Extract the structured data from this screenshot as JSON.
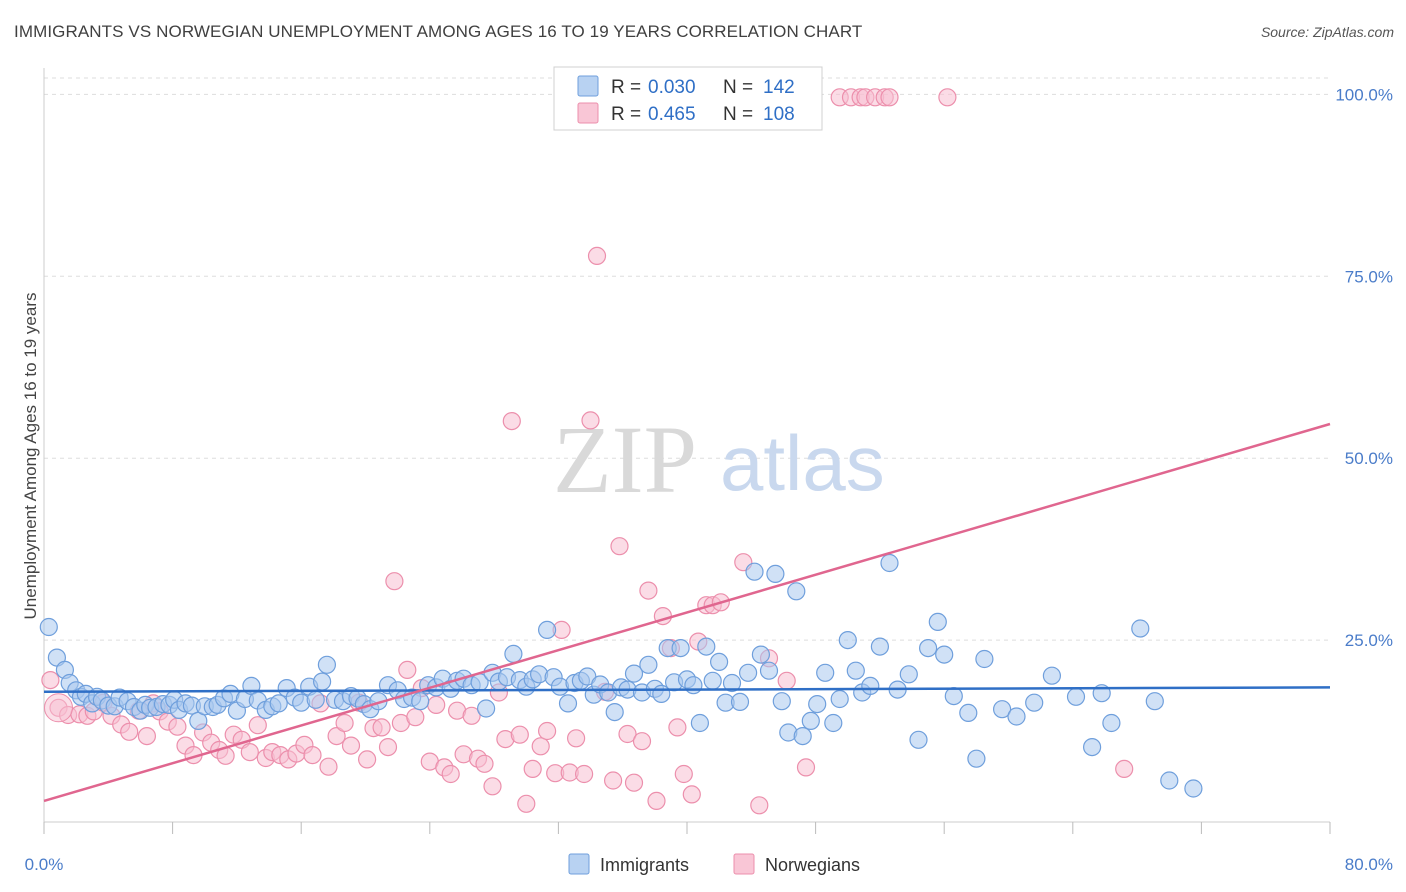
{
  "header": {
    "title": "IMMIGRANTS VS NORWEGIAN UNEMPLOYMENT AMONG AGES 16 TO 19 YEARS CORRELATION CHART",
    "source": "Source: ZipAtlas.com"
  },
  "watermark": {
    "zip": "ZIP",
    "atlas": "atlas"
  },
  "legend": {
    "rows": [
      {
        "r_label": "R =",
        "r_value": "0.030",
        "n_label": "N =",
        "n_value": "142",
        "color": "#8db4e8"
      },
      {
        "r_label": "R =",
        "r_value": "0.465",
        "n_label": "N =",
        "n_value": "108",
        "color": "#f4a8c0"
      }
    ]
  },
  "bottom_legend": {
    "immigrants": "Immigrants",
    "norwegians": "Norwegians"
  },
  "colors": {
    "immigrants_fill": "#a9c8ef",
    "immigrants_stroke": "#6f9fdc",
    "immigrants_line": "#2f6fc6",
    "norwegians_fill": "#f8bfd1",
    "norwegians_stroke": "#ec8fac",
    "norwegians_line": "#e0668f",
    "tick_label": "#4a7cc9",
    "grid": "#dddddd"
  },
  "chart_data": {
    "type": "scatter",
    "title": "IMMIGRANTS VS NORWEGIAN UNEMPLOYMENT AMONG AGES 16 TO 19 YEARS CORRELATION CHART",
    "xlabel": "",
    "ylabel": "Unemployment Among Ages 16 to 19 years",
    "xlim": [
      0,
      80
    ],
    "ylim": [
      0,
      105
    ],
    "x_tick_labels": [
      "0.0%",
      "80.0%"
    ],
    "y_ticks": [
      25,
      50,
      75,
      100
    ],
    "y_tick_labels": [
      "25.0%",
      "50.0%",
      "75.0%",
      "100.0%"
    ],
    "grid": true,
    "legend_position": "top-center",
    "series": [
      {
        "name": "Immigrants",
        "r": 0.03,
        "n": 142,
        "trend": {
          "x": [
            0,
            80
          ],
          "y": [
            17.9,
            18.5
          ]
        },
        "points": [
          [
            0.3,
            26.8
          ],
          [
            0.8,
            22.6
          ],
          [
            1.3,
            20.9
          ],
          [
            1.6,
            19.1
          ],
          [
            2,
            18.1
          ],
          [
            2.3,
            17.2
          ],
          [
            2.6,
            17.6
          ],
          [
            3,
            16.3
          ],
          [
            3.3,
            17.2
          ],
          [
            3.6,
            16.7
          ],
          [
            4,
            16
          ],
          [
            4.4,
            15.9
          ],
          [
            4.7,
            17.1
          ],
          [
            5.2,
            16.6
          ],
          [
            5.6,
            15.8
          ],
          [
            6,
            15.3
          ],
          [
            6.3,
            16.1
          ],
          [
            6.6,
            15.7
          ],
          [
            7,
            15.8
          ],
          [
            7.4,
            16.2
          ],
          [
            7.8,
            16.1
          ],
          [
            8.1,
            16.8
          ],
          [
            8.4,
            15.4
          ],
          [
            8.8,
            16.3
          ],
          [
            9.2,
            16
          ],
          [
            9.6,
            13.9
          ],
          [
            10,
            15.9
          ],
          [
            10.5,
            15.8
          ],
          [
            10.8,
            16.1
          ],
          [
            11.2,
            17
          ],
          [
            11.6,
            17.6
          ],
          [
            12,
            15.3
          ],
          [
            12.5,
            16.9
          ],
          [
            12.9,
            18.7
          ],
          [
            13.3,
            16.7
          ],
          [
            13.8,
            15.4
          ],
          [
            14.2,
            15.9
          ],
          [
            14.6,
            16.3
          ],
          [
            15.1,
            18.4
          ],
          [
            15.6,
            17.1
          ],
          [
            16,
            16.4
          ],
          [
            16.5,
            18.6
          ],
          [
            16.9,
            16.8
          ],
          [
            17.3,
            19.3
          ],
          [
            17.6,
            21.6
          ],
          [
            18.1,
            16.8
          ],
          [
            18.6,
            16.6
          ],
          [
            19.1,
            17.3
          ],
          [
            19.5,
            17
          ],
          [
            19.9,
            16.2
          ],
          [
            20.3,
            15.5
          ],
          [
            20.8,
            16.6
          ],
          [
            21.4,
            18.8
          ],
          [
            22,
            18.1
          ],
          [
            22.4,
            16.9
          ],
          [
            22.9,
            17.1
          ],
          [
            23.4,
            16.6
          ],
          [
            23.9,
            18.8
          ],
          [
            24.4,
            18.5
          ],
          [
            24.8,
            19.7
          ],
          [
            25.3,
            18.3
          ],
          [
            25.7,
            19.4
          ],
          [
            26.1,
            19.7
          ],
          [
            26.6,
            18.8
          ],
          [
            27.1,
            19.2
          ],
          [
            27.5,
            15.6
          ],
          [
            27.9,
            20.5
          ],
          [
            28.3,
            19.3
          ],
          [
            28.8,
            19.9
          ],
          [
            29.2,
            23.1
          ],
          [
            29.6,
            19.5
          ],
          [
            30,
            18.6
          ],
          [
            30.4,
            19.6
          ],
          [
            30.8,
            20.3
          ],
          [
            31.3,
            26.4
          ],
          [
            31.7,
            19.9
          ],
          [
            32.1,
            18.6
          ],
          [
            32.6,
            16.3
          ],
          [
            33,
            19.1
          ],
          [
            33.4,
            19.4
          ],
          [
            33.8,
            20
          ],
          [
            34.2,
            17.5
          ],
          [
            34.6,
            18.9
          ],
          [
            35.1,
            17.8
          ],
          [
            35.5,
            15.1
          ],
          [
            35.9,
            18.5
          ],
          [
            36.3,
            18.2
          ],
          [
            36.7,
            20.4
          ],
          [
            37.2,
            17.8
          ],
          [
            37.6,
            21.6
          ],
          [
            38,
            18.3
          ],
          [
            38.4,
            17.6
          ],
          [
            38.8,
            23.9
          ],
          [
            39.2,
            19.2
          ],
          [
            39.6,
            23.9
          ],
          [
            40,
            19.6
          ],
          [
            40.4,
            18.8
          ],
          [
            40.8,
            13.6
          ],
          [
            41.2,
            24.1
          ],
          [
            41.6,
            19.4
          ],
          [
            42,
            22
          ],
          [
            42.4,
            16.4
          ],
          [
            42.8,
            19.1
          ],
          [
            43.3,
            16.5
          ],
          [
            43.8,
            20.5
          ],
          [
            44.2,
            34.4
          ],
          [
            44.6,
            23
          ],
          [
            45.1,
            20.8
          ],
          [
            45.5,
            34.1
          ],
          [
            45.9,
            16.6
          ],
          [
            46.3,
            12.3
          ],
          [
            46.8,
            31.7
          ],
          [
            47.2,
            11.8
          ],
          [
            47.7,
            13.9
          ],
          [
            48.1,
            16.2
          ],
          [
            48.6,
            20.5
          ],
          [
            49.1,
            13.6
          ],
          [
            49.5,
            16.9
          ],
          [
            50,
            25
          ],
          [
            50.5,
            20.8
          ],
          [
            50.9,
            17.8
          ],
          [
            51.4,
            18.7
          ],
          [
            52,
            24.1
          ],
          [
            52.6,
            35.6
          ],
          [
            53.1,
            18.2
          ],
          [
            53.8,
            20.3
          ],
          [
            54.4,
            11.3
          ],
          [
            55,
            23.9
          ],
          [
            55.6,
            27.5
          ],
          [
            56,
            23
          ],
          [
            56.6,
            17.3
          ],
          [
            57.5,
            15
          ],
          [
            58,
            8.7
          ],
          [
            58.5,
            22.4
          ],
          [
            59.6,
            15.5
          ],
          [
            60.5,
            14.5
          ],
          [
            61.6,
            16.4
          ],
          [
            62.7,
            20.1
          ],
          [
            64.2,
            17.2
          ],
          [
            65.2,
            10.3
          ],
          [
            65.8,
            17.7
          ],
          [
            66.4,
            13.6
          ],
          [
            68.2,
            26.6
          ],
          [
            69.1,
            16.6
          ],
          [
            70,
            5.7
          ],
          [
            71.5,
            4.6
          ]
        ]
      },
      {
        "name": "Norwegians",
        "r": 0.465,
        "n": 108,
        "trend": {
          "x": [
            0,
            80
          ],
          "y": [
            2.9,
            54.7
          ]
        },
        "points": [
          [
            0.4,
            19.5
          ],
          [
            0.9,
            15.7
          ],
          [
            1.5,
            14.7
          ],
          [
            2.2,
            14.8
          ],
          [
            2.7,
            14.6
          ],
          [
            3.1,
            15.2
          ],
          [
            3.7,
            16.4
          ],
          [
            4.2,
            14.6
          ],
          [
            4.8,
            13.4
          ],
          [
            5.3,
            12.4
          ],
          [
            5.9,
            15.3
          ],
          [
            6.4,
            11.8
          ],
          [
            6.8,
            16.3
          ],
          [
            7.2,
            15.2
          ],
          [
            7.7,
            13.8
          ],
          [
            8.3,
            13.1
          ],
          [
            8.8,
            10.5
          ],
          [
            9.3,
            9.2
          ],
          [
            9.9,
            12.3
          ],
          [
            10.4,
            10.9
          ],
          [
            10.9,
            9.9
          ],
          [
            11.3,
            9.1
          ],
          [
            11.8,
            12
          ],
          [
            12.3,
            11.3
          ],
          [
            12.8,
            9.6
          ],
          [
            13.3,
            13.3
          ],
          [
            13.8,
            8.8
          ],
          [
            14.2,
            9.6
          ],
          [
            14.7,
            9.2
          ],
          [
            15.2,
            8.6
          ],
          [
            15.7,
            9.4
          ],
          [
            16.2,
            10.6
          ],
          [
            16.7,
            9.2
          ],
          [
            17.2,
            16.3
          ],
          [
            17.7,
            7.6
          ],
          [
            18.2,
            11.8
          ],
          [
            18.7,
            13.6
          ],
          [
            19.1,
            10.5
          ],
          [
            19.6,
            16.4
          ],
          [
            20.1,
            8.6
          ],
          [
            20.5,
            12.9
          ],
          [
            21,
            13
          ],
          [
            21.4,
            10.3
          ],
          [
            21.8,
            33.1
          ],
          [
            22.2,
            13.6
          ],
          [
            22.6,
            20.9
          ],
          [
            23.1,
            14.4
          ],
          [
            23.5,
            18.4
          ],
          [
            24,
            8.3
          ],
          [
            24.4,
            16.1
          ],
          [
            24.9,
            7.5
          ],
          [
            25.3,
            6.6
          ],
          [
            25.7,
            15.3
          ],
          [
            26.1,
            9.3
          ],
          [
            26.6,
            14.6
          ],
          [
            27,
            8.7
          ],
          [
            27.4,
            8
          ],
          [
            27.9,
            4.9
          ],
          [
            28.3,
            17.8
          ],
          [
            28.7,
            11.4
          ],
          [
            29.1,
            55.1
          ],
          [
            29.6,
            12
          ],
          [
            30,
            2.5
          ],
          [
            30.4,
            7.3
          ],
          [
            30.9,
            10.4
          ],
          [
            31.3,
            12.5
          ],
          [
            31.8,
            6.7
          ],
          [
            32.2,
            26.4
          ],
          [
            32.7,
            6.8
          ],
          [
            33.1,
            11.5
          ],
          [
            33.6,
            6.6
          ],
          [
            34,
            55.2
          ],
          [
            34.4,
            77.8
          ],
          [
            34.9,
            17.9
          ],
          [
            35.4,
            5.7
          ],
          [
            35.8,
            37.9
          ],
          [
            36.3,
            12.1
          ],
          [
            36.7,
            5.4
          ],
          [
            37.2,
            11.1
          ],
          [
            37.6,
            31.8
          ],
          [
            38.1,
            2.9
          ],
          [
            38.5,
            28.3
          ],
          [
            39,
            23.9
          ],
          [
            39.4,
            13
          ],
          [
            39.8,
            6.6
          ],
          [
            40.3,
            3.8
          ],
          [
            40.7,
            24.8
          ],
          [
            41.2,
            29.8
          ],
          [
            41.6,
            29.8
          ],
          [
            42.1,
            30.2
          ],
          [
            43.5,
            35.7
          ],
          [
            44.5,
            2.3
          ],
          [
            45.1,
            22.5
          ],
          [
            46.2,
            19.4
          ],
          [
            47.4,
            7.5
          ],
          [
            49.5,
            99.6
          ],
          [
            50.2,
            99.6
          ],
          [
            50.8,
            99.6
          ],
          [
            51.1,
            99.6
          ],
          [
            51.7,
            99.6
          ],
          [
            52.3,
            99.6
          ],
          [
            52.6,
            99.6
          ],
          [
            56.2,
            99.6
          ],
          [
            67.2,
            7.3
          ]
        ]
      }
    ]
  }
}
